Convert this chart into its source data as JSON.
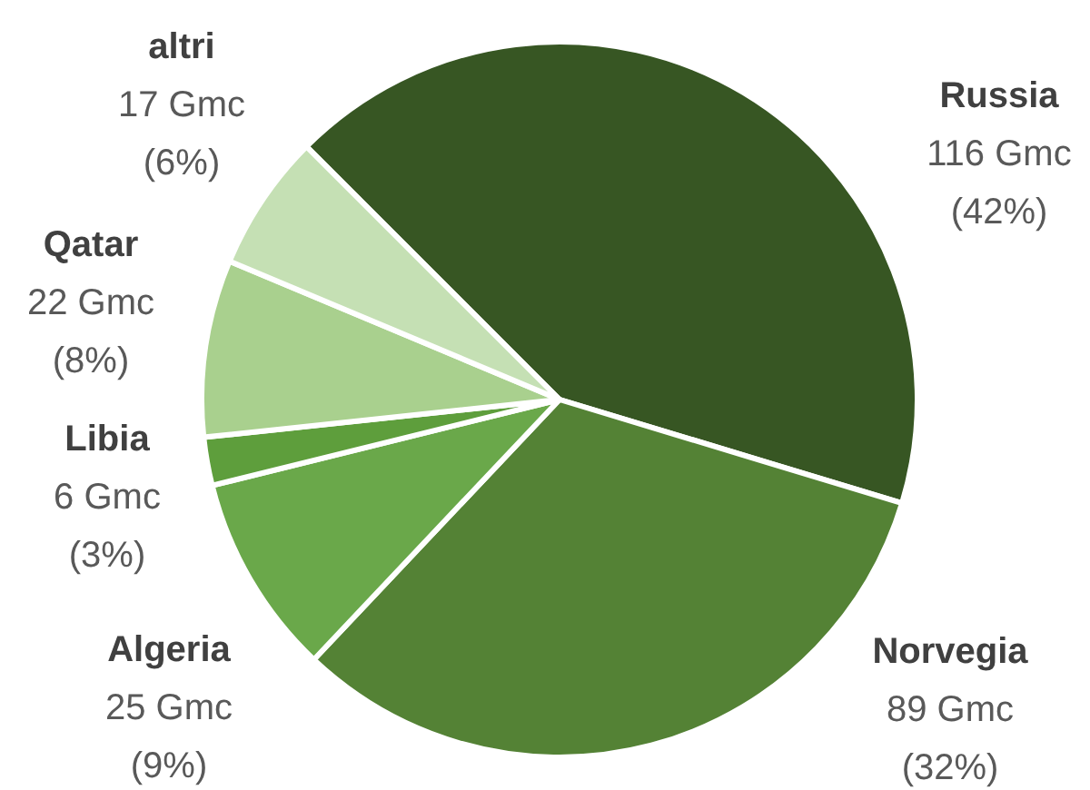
{
  "chart_data": {
    "type": "pie",
    "categories": [
      "Russia",
      "Norvegia",
      "Algeria",
      "Libia",
      "Qatar",
      "altri"
    ],
    "values": [
      116,
      89,
      25,
      6,
      22,
      17
    ],
    "value_labels": [
      "116 Gmc\n(42%)",
      "89 Gmc\n(32%)",
      "25 Gmc\n(9%)",
      "6 Gmc\n(3%)",
      "22 Gmc\n(8%)",
      "17 Gmc\n(6%)"
    ],
    "colors": [
      "#375623",
      "#548235",
      "#6aa84a",
      "#5e9e3c",
      "#a9d08e",
      "#c5e0b4"
    ]
  }
}
